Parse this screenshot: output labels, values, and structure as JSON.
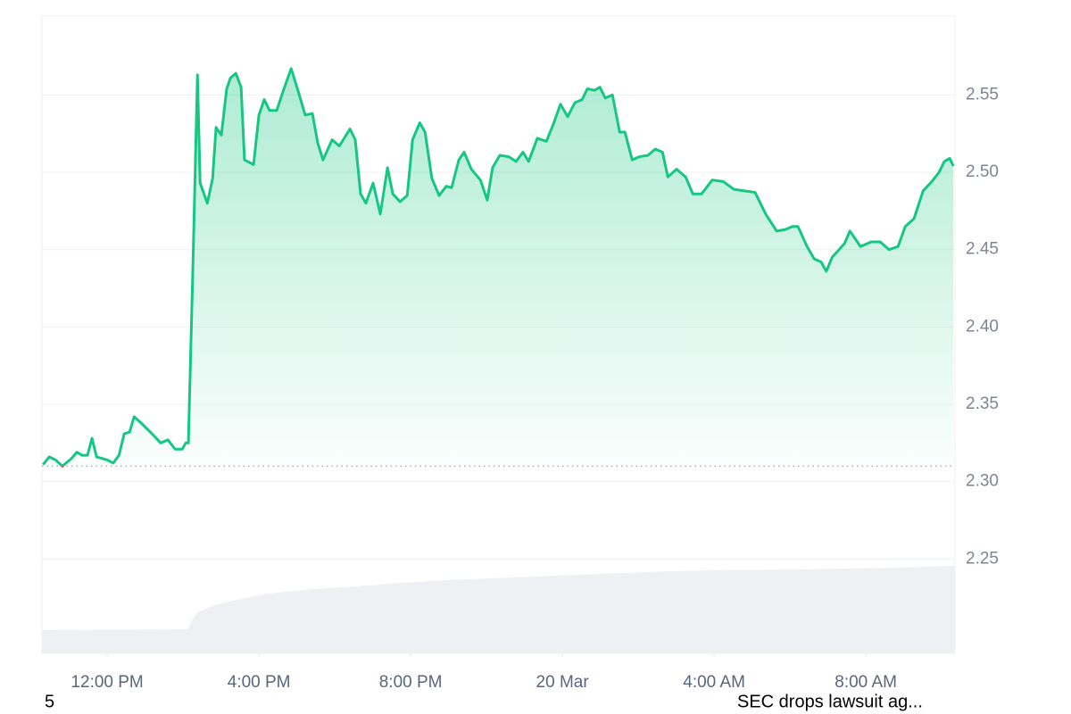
{
  "chart_data": {
    "type": "line",
    "color": "#16c784",
    "below_color": "#ea3943",
    "baseline": 2.31,
    "grid": true,
    "xlim": [
      10.28,
      34.35
    ],
    "ylim": [
      2.189,
      2.601
    ],
    "xticks": [
      {
        "value": 12,
        "label": "12:00 PM"
      },
      {
        "value": 16,
        "label": "4:00 PM"
      },
      {
        "value": 20,
        "label": "8:00 PM"
      },
      {
        "value": 24,
        "label": "20 Mar"
      },
      {
        "value": 28,
        "label": "4:00 AM"
      },
      {
        "value": 32,
        "label": "8:00 AM"
      }
    ],
    "yticks": [
      {
        "value": 2.25,
        "label": "2.25"
      },
      {
        "value": 2.3,
        "label": "2.30"
      },
      {
        "value": 2.35,
        "label": "2.35"
      },
      {
        "value": 2.4,
        "label": "2.40"
      },
      {
        "value": 2.45,
        "label": "2.45"
      },
      {
        "value": 2.5,
        "label": "2.50"
      },
      {
        "value": 2.55,
        "label": "2.55"
      }
    ],
    "x": [
      10.31,
      10.47,
      10.64,
      10.82,
      11.06,
      11.2,
      11.34,
      11.48,
      11.6,
      11.72,
      12.0,
      12.16,
      12.31,
      12.45,
      12.59,
      12.71,
      12.89,
      13.18,
      13.41,
      13.6,
      13.79,
      13.98,
      14.07,
      14.14,
      14.26,
      14.38,
      14.45,
      14.64,
      14.78,
      14.87,
      15.01,
      15.15,
      15.25,
      15.39,
      15.53,
      15.62,
      15.86,
      16.0,
      16.14,
      16.28,
      16.47,
      16.66,
      16.85,
      17.04,
      17.22,
      17.41,
      17.55,
      17.69,
      17.93,
      18.12,
      18.4,
      18.54,
      18.68,
      18.82,
      19.01,
      19.2,
      19.39,
      19.53,
      19.72,
      19.91,
      20.05,
      20.24,
      20.38,
      20.56,
      20.75,
      20.94,
      21.08,
      21.27,
      21.41,
      21.6,
      21.84,
      22.02,
      22.16,
      22.35,
      22.59,
      22.78,
      22.96,
      23.11,
      23.34,
      23.58,
      23.76,
      23.95,
      24.14,
      24.33,
      24.52,
      24.66,
      24.85,
      24.99,
      25.13,
      25.32,
      25.51,
      25.65,
      25.84,
      26.02,
      26.26,
      26.45,
      26.64,
      26.78,
      27.01,
      27.25,
      27.44,
      27.67,
      27.95,
      28.24,
      28.52,
      28.8,
      29.08,
      29.36,
      29.65,
      29.88,
      30.07,
      30.21,
      30.45,
      30.64,
      30.82,
      30.96,
      31.11,
      31.44,
      31.58,
      31.86,
      32.14,
      32.38,
      32.61,
      32.85,
      33.04,
      33.27,
      33.51,
      33.74,
      33.93,
      34.07,
      34.21,
      34.31
    ],
    "values": [
      2.311,
      2.316,
      2.314,
      2.31,
      2.315,
      2.319,
      2.317,
      2.317,
      2.328,
      2.316,
      2.314,
      2.312,
      2.317,
      2.331,
      2.332,
      2.342,
      2.338,
      2.331,
      2.325,
      2.327,
      2.321,
      2.321,
      2.325,
      2.325,
      2.439,
      2.563,
      2.493,
      2.48,
      2.496,
      2.529,
      2.524,
      2.554,
      2.561,
      2.564,
      2.555,
      2.508,
      2.505,
      2.537,
      2.547,
      2.54,
      2.54,
      2.554,
      2.567,
      2.552,
      2.537,
      2.538,
      2.519,
      2.508,
      2.521,
      2.517,
      2.528,
      2.521,
      2.486,
      2.48,
      2.493,
      2.473,
      2.503,
      2.486,
      2.481,
      2.485,
      2.521,
      2.532,
      2.526,
      2.496,
      2.485,
      2.491,
      2.49,
      2.508,
      2.513,
      2.502,
      2.495,
      2.482,
      2.503,
      2.511,
      2.51,
      2.507,
      2.513,
      2.507,
      2.522,
      2.52,
      2.531,
      2.544,
      2.536,
      2.545,
      2.547,
      2.554,
      2.553,
      2.555,
      2.548,
      2.55,
      2.526,
      2.526,
      2.508,
      2.51,
      2.511,
      2.515,
      2.513,
      2.497,
      2.502,
      2.497,
      2.486,
      2.486,
      2.495,
      2.494,
      2.489,
      2.488,
      2.487,
      2.473,
      2.462,
      2.463,
      2.465,
      2.465,
      2.452,
      2.444,
      2.442,
      2.436,
      2.445,
      2.454,
      2.462,
      2.452,
      2.455,
      2.455,
      2.45,
      2.452,
      2.465,
      2.47,
      2.488,
      2.494,
      2.5,
      2.507,
      2.509,
      2.504
    ],
    "annotations": [
      "5",
      "SEC drops lawsuit ag..."
    ]
  }
}
